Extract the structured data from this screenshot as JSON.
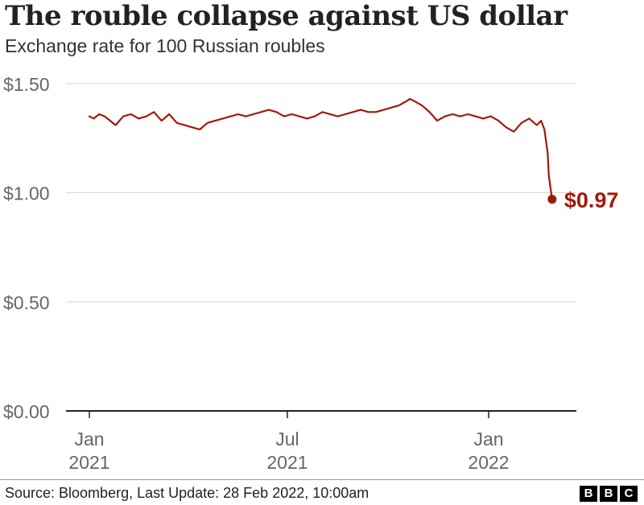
{
  "title": "The rouble collapse against US dollar",
  "subtitle": "Exchange rate for 100 Russian roubles",
  "source": "Source: Bloomberg, Last Update: 28 Feb 2022, 10:00am",
  "logo": [
    "B",
    "B",
    "C"
  ],
  "colors": {
    "line": "#a01a0a",
    "grid": "#d6d6d6",
    "axis": "#222222",
    "tick_text": "#666666"
  },
  "chart_data": {
    "type": "line",
    "title": "The rouble collapse against US dollar",
    "subtitle": "Exchange rate for 100 Russian roubles",
    "xlabel": "",
    "ylabel": "",
    "ylim": [
      0,
      1.5
    ],
    "xlim": [
      "2020-12-28",
      "2022-03-28"
    ],
    "y_ticks": [
      0,
      0.5,
      1.0,
      1.5
    ],
    "y_tick_labels": [
      "$0.00",
      "$0.50",
      "$1.00",
      "$1.50"
    ],
    "x_ticks": [
      "2021-01-01",
      "2021-07-01",
      "2022-01-01"
    ],
    "x_tick_labels": [
      [
        "Jan",
        "2021"
      ],
      [
        "Jul",
        "2021"
      ],
      [
        "Jan",
        "2022"
      ]
    ],
    "grid": true,
    "annotation": {
      "label": "$0.97",
      "x": "2022-02-28",
      "y": 0.97
    },
    "series": [
      {
        "x": [
          "2021-01-01",
          "2021-01-05",
          "2021-01-10",
          "2021-01-15",
          "2021-01-20",
          "2021-01-25",
          "2021-02-01",
          "2021-02-08",
          "2021-02-15",
          "2021-02-22",
          "2021-03-01",
          "2021-03-08",
          "2021-03-15",
          "2021-03-22",
          "2021-03-29",
          "2021-04-05",
          "2021-04-12",
          "2021-04-19",
          "2021-04-26",
          "2021-05-03",
          "2021-05-10",
          "2021-05-17",
          "2021-05-24",
          "2021-05-31",
          "2021-06-07",
          "2021-06-14",
          "2021-06-21",
          "2021-06-28",
          "2021-07-05",
          "2021-07-12",
          "2021-07-19",
          "2021-07-26",
          "2021-08-02",
          "2021-08-09",
          "2021-08-16",
          "2021-08-23",
          "2021-08-30",
          "2021-09-06",
          "2021-09-13",
          "2021-09-20",
          "2021-09-27",
          "2021-10-04",
          "2021-10-11",
          "2021-10-18",
          "2021-10-21",
          "2021-10-25",
          "2021-11-01",
          "2021-11-08",
          "2021-11-15",
          "2021-11-22",
          "2021-11-29",
          "2021-12-06",
          "2021-12-13",
          "2021-12-20",
          "2021-12-27",
          "2022-01-03",
          "2022-01-10",
          "2022-01-17",
          "2022-01-24",
          "2022-01-31",
          "2022-02-07",
          "2022-02-14",
          "2022-02-18",
          "2022-02-21",
          "2022-02-24",
          "2022-02-25",
          "2022-02-28"
        ],
        "values": [
          1.35,
          1.34,
          1.36,
          1.35,
          1.33,
          1.31,
          1.35,
          1.36,
          1.34,
          1.35,
          1.37,
          1.33,
          1.36,
          1.32,
          1.31,
          1.3,
          1.29,
          1.32,
          1.33,
          1.34,
          1.35,
          1.36,
          1.35,
          1.36,
          1.37,
          1.38,
          1.37,
          1.35,
          1.36,
          1.35,
          1.34,
          1.35,
          1.37,
          1.36,
          1.35,
          1.36,
          1.37,
          1.38,
          1.37,
          1.37,
          1.38,
          1.39,
          1.4,
          1.42,
          1.43,
          1.42,
          1.4,
          1.37,
          1.33,
          1.35,
          1.36,
          1.35,
          1.36,
          1.35,
          1.34,
          1.35,
          1.33,
          1.3,
          1.28,
          1.32,
          1.34,
          1.31,
          1.33,
          1.29,
          1.18,
          1.08,
          0.97
        ]
      }
    ]
  }
}
